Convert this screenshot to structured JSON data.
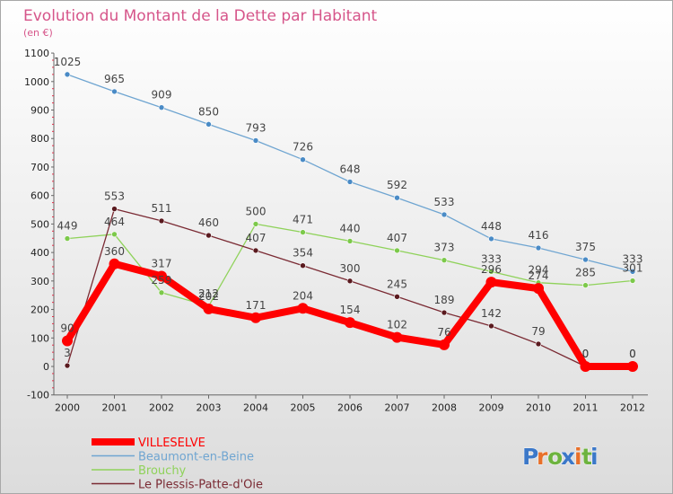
{
  "chart_data": {
    "type": "line",
    "title": "Evolution du Montant de la Dette par Habitant",
    "subtitle": "(en €)",
    "xlabel": "",
    "ylabel": "",
    "categories": [
      "2000",
      "2001",
      "2002",
      "2003",
      "2004",
      "2005",
      "2006",
      "2007",
      "2008",
      "2009",
      "2010",
      "2011",
      "2012"
    ],
    "yticks": [
      -100,
      0,
      100,
      200,
      300,
      400,
      500,
      600,
      700,
      800,
      900,
      1000,
      1100
    ],
    "ylim": [
      -100,
      1100
    ],
    "grid": false,
    "legend_position": "bottom-left",
    "series": [
      {
        "name": "Beaumont-en-Beine",
        "color": "#6fa5d1",
        "marker_color": "#4a8bc6",
        "values": [
          1025,
          965,
          909,
          850,
          793,
          726,
          648,
          592,
          533,
          448,
          416,
          375,
          333
        ],
        "labels": [
          "1025",
          "965",
          "909",
          "850",
          "793",
          "726",
          "648",
          "592",
          "533",
          "448",
          "416",
          "375",
          "333"
        ]
      },
      {
        "name": "Brouchy",
        "color": "#8fd25a",
        "marker_color": "#7cc94a",
        "values": [
          449,
          464,
          259,
          212,
          500,
          471,
          440,
          407,
          373,
          333,
          294,
          285,
          301
        ],
        "labels": [
          "449",
          "464",
          "259",
          "212",
          "500",
          "471",
          "440",
          "407",
          "373",
          "333",
          "294",
          "285",
          "301"
        ]
      },
      {
        "name": "Le Plessis-Patte-d'Oie",
        "color": "#7a2a33",
        "marker_color": "#5a1a1f",
        "values": [
          3,
          553,
          511,
          460,
          407,
          354,
          300,
          245,
          189,
          142,
          79,
          0,
          0
        ],
        "labels": [
          "3",
          "553",
          "511",
          "460",
          "407",
          "354",
          "300",
          "245",
          "189",
          "142",
          "79",
          "0",
          "0"
        ]
      },
      {
        "name": "VILLESELVE",
        "color": "#ff0000",
        "marker_color": "#ff0000",
        "values": [
          90,
          360,
          317,
          202,
          171,
          204,
          154,
          102,
          76,
          296,
          274,
          0,
          0
        ],
        "labels": [
          "90",
          "360",
          "317",
          "202",
          "171",
          "204",
          "154",
          "102",
          "76",
          "296",
          "274",
          "0",
          "0"
        ]
      }
    ],
    "legend_order": [
      "VILLESELVE",
      "Beaumont-en-Beine",
      "Brouchy",
      "Le Plessis-Patte-d'Oie"
    ],
    "brand": {
      "text": "Proxiti",
      "letters": [
        "P",
        "r",
        "o",
        "x",
        "i",
        "t",
        "i"
      ],
      "letter_colors": [
        "#3c78c8",
        "#e8702a",
        "#6db33f",
        "#3c78c8",
        "#e8702a",
        "#6db33f",
        "#3c78c8"
      ]
    }
  }
}
